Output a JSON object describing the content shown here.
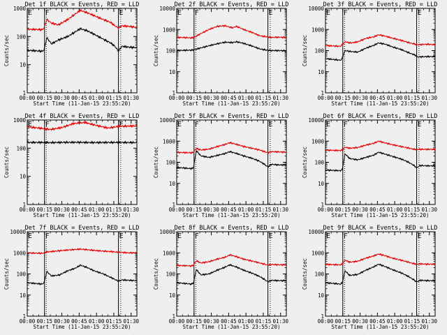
{
  "figure": {
    "background": "#efefef",
    "event_color": "#000000",
    "lld_color": "#e00000"
  },
  "chart_data": [
    {
      "type": "line",
      "title": "Det 1f BLACK = Events, RED = LLD",
      "detector": "1f",
      "xlabel": "Start Time (11-Jan-15 23:55:20)",
      "ylabel": "Counts/sec",
      "yscale": "log",
      "ylim": [
        1,
        1000
      ],
      "yticks": [
        "1",
        "10",
        "100",
        "1000"
      ],
      "xlim": [
        0,
        95
      ],
      "xticks": [
        "00:00",
        "00:15",
        "00:30",
        "00:45",
        "01:00",
        "01:15",
        "01:30"
      ],
      "markers": [
        {
          "label": "E",
          "x": -2
        },
        {
          "label": "F",
          "x": 15
        },
        {
          "label": "E",
          "x": 79
        }
      ],
      "vlines_solid": [
        15,
        79
      ],
      "vlines_dotted": [
        -1,
        16.5,
        81
      ],
      "x": [
        -5,
        3,
        13,
        14.5,
        17,
        21,
        27,
        35,
        42,
        46,
        52,
        58,
        66,
        72,
        76,
        79,
        82,
        88,
        95
      ],
      "series": [
        {
          "name": "Events",
          "color": "#000000",
          "values": [
            33,
            32,
            30,
            33,
            90,
            55,
            75,
            100,
            150,
            190,
            160,
            120,
            80,
            60,
            45,
            30,
            45,
            42,
            40
          ]
        },
        {
          "name": "LLD",
          "color": "#e00000",
          "values": [
            190,
            180,
            175,
            200,
            400,
            300,
            260,
            400,
            650,
            850,
            700,
            550,
            400,
            320,
            240,
            200,
            240,
            230,
            210
          ]
        }
      ]
    },
    {
      "type": "line",
      "title": "Det 2f BLACK = Events, RED = LLD",
      "detector": "2f",
      "xlabel": "Start Time (11-Jan-15 23:55:20)",
      "ylabel": "Counts/sec",
      "yscale": "log",
      "ylim": [
        1,
        10000
      ],
      "yticks": [
        "1",
        "10",
        "100",
        "1000",
        "10000"
      ],
      "xlim": [
        0,
        95
      ],
      "xticks": [
        "00:00",
        "00:15",
        "00:30",
        "00:45",
        "01:00",
        "01:15",
        "01:30"
      ],
      "markers": [
        {
          "label": "E",
          "x": -2
        },
        {
          "label": "F",
          "x": 15
        },
        {
          "label": "E",
          "x": 79
        }
      ],
      "vlines_solid": [
        15,
        79
      ],
      "vlines_dotted": [
        -1,
        16.5,
        81
      ],
      "x": [
        -5,
        3,
        13,
        15,
        20,
        28,
        35,
        42,
        48,
        52,
        58,
        66,
        72,
        78,
        82,
        88,
        95
      ],
      "series": [
        {
          "name": "Events",
          "color": "#000000",
          "values": [
            100,
            102,
            105,
            110,
            130,
            170,
            210,
            250,
            240,
            260,
            220,
            160,
            120,
            105,
            100,
            100,
            98
          ]
        },
        {
          "name": "LLD",
          "color": "#e00000",
          "values": [
            400,
            420,
            400,
            420,
            600,
            1000,
            1400,
            1500,
            1200,
            1400,
            1000,
            700,
            500,
            450,
            420,
            430,
            420
          ]
        }
      ]
    },
    {
      "type": "line",
      "title": "Det 3f BLACK = Events, RED = LLD",
      "detector": "3f",
      "xlabel": "Start Time (11-Jan-15 23:55:20)",
      "ylabel": "Counts/sec",
      "yscale": "log",
      "ylim": [
        1,
        10000
      ],
      "yticks": [
        "1",
        "10",
        "100",
        "1000",
        "10000"
      ],
      "xlim": [
        0,
        95
      ],
      "xticks": [
        "00:00",
        "00:15",
        "00:30",
        "00:45",
        "01:00",
        "01:15",
        "01:30"
      ],
      "markers": [
        {
          "label": "E",
          "x": -2
        },
        {
          "label": "F",
          "x": 15
        },
        {
          "label": "E",
          "x": 79
        }
      ],
      "vlines_solid": [
        15,
        79
      ],
      "vlines_dotted": [
        -1,
        16.5,
        81
      ],
      "x": [
        -5,
        3,
        13,
        14,
        17,
        22,
        28,
        35,
        42,
        46,
        52,
        58,
        66,
        72,
        78,
        80,
        88,
        95
      ],
      "series": [
        {
          "name": "Events",
          "color": "#000000",
          "values": [
            45,
            40,
            35,
            38,
            100,
            90,
            85,
            130,
            180,
            230,
            200,
            150,
            110,
            80,
            60,
            50,
            52,
            52
          ]
        },
        {
          "name": "LLD",
          "color": "#e00000",
          "values": [
            180,
            170,
            160,
            180,
            260,
            230,
            260,
            380,
            450,
            560,
            480,
            390,
            300,
            240,
            200,
            190,
            200,
            190
          ]
        }
      ]
    },
    {
      "type": "line",
      "title": "Det 4f BLACK = Events, RED = LLD",
      "detector": "4f",
      "xlabel": "Start Time (11-Jan-15 23:55:20)",
      "ylabel": "Counts/sec",
      "yscale": "log",
      "ylim": [
        1,
        1000
      ],
      "yticks": [
        "1",
        "10",
        "100",
        "1000"
      ],
      "xlim": [
        0,
        95
      ],
      "xticks": [
        "00:00",
        "00:15",
        "00:30",
        "00:45",
        "01:00",
        "01:15",
        "01:30"
      ],
      "markers": [
        {
          "label": "E",
          "x": -2
        },
        {
          "label": "F",
          "x": 15
        },
        {
          "label": "E",
          "x": 79
        }
      ],
      "vlines_solid": [
        15,
        79
      ],
      "vlines_dotted": [
        -1,
        16.5,
        81
      ],
      "x": [
        -5,
        10,
        20,
        30,
        40,
        50,
        60,
        70,
        80,
        95
      ],
      "series": [
        {
          "name": "Events",
          "color": "#000000",
          "values": [
            160,
            160,
            158,
            160,
            162,
            160,
            158,
            160,
            160,
            158
          ]
        },
        {
          "name": "LLD",
          "color": "#e00000",
          "values": [
            600,
            520,
            460,
            540,
            750,
            820,
            640,
            520,
            600,
            620
          ]
        }
      ]
    },
    {
      "type": "line",
      "title": "Det 5f BLACK = Events, RED = LLD",
      "detector": "5f",
      "xlabel": "Start Time (11-Jan-15 23:55:20)",
      "ylabel": "Counts/sec",
      "yscale": "log",
      "ylim": [
        1,
        10000
      ],
      "yticks": [
        "1",
        "10",
        "100",
        "1000",
        "10000"
      ],
      "xlim": [
        0,
        95
      ],
      "xticks": [
        "00:00",
        "00:15",
        "00:30",
        "00:45",
        "01:00",
        "01:15",
        "01:30"
      ],
      "markers": [
        {
          "label": "E",
          "x": -2
        },
        {
          "label": "F",
          "x": 15
        },
        {
          "label": "E",
          "x": 79
        }
      ],
      "vlines_solid": [
        15,
        79
      ],
      "vlines_dotted": [
        -1,
        16.5,
        81
      ],
      "x": [
        -5,
        3,
        13,
        14.5,
        17,
        21,
        28,
        35,
        42,
        46,
        52,
        58,
        66,
        72,
        76,
        79,
        82,
        88,
        95
      ],
      "series": [
        {
          "name": "Events",
          "color": "#000000",
          "values": [
            60,
            55,
            50,
            55,
            350,
            200,
            170,
            210,
            260,
            320,
            260,
            200,
            150,
            110,
            80,
            60,
            80,
            75,
            75
          ]
        },
        {
          "name": "LLD",
          "color": "#e00000",
          "values": [
            300,
            290,
            280,
            300,
            450,
            380,
            420,
            550,
            700,
            850,
            700,
            560,
            450,
            380,
            320,
            280,
            320,
            310,
            300
          ]
        }
      ]
    },
    {
      "type": "line",
      "title": "Det 6f BLACK = Events, RED = LLD",
      "detector": "6f",
      "xlabel": "Start Time (11-Jan-15 23:55:20)",
      "ylabel": "Counts/sec",
      "yscale": "log",
      "ylim": [
        1,
        10000
      ],
      "yticks": [
        "1",
        "10",
        "100",
        "1000",
        "10000"
      ],
      "xlim": [
        0,
        95
      ],
      "xticks": [
        "00:00",
        "00:15",
        "00:30",
        "00:45",
        "01:00",
        "01:15",
        "01:30"
      ],
      "markers": [
        {
          "label": "E",
          "x": -2
        },
        {
          "label": "F",
          "x": 15
        },
        {
          "label": "E",
          "x": 79
        }
      ],
      "vlines_solid": [
        15,
        79
      ],
      "vlines_dotted": [
        -1,
        16.5,
        81
      ],
      "x": [
        -5,
        3,
        13,
        14.5,
        17,
        21,
        28,
        35,
        42,
        46,
        52,
        58,
        66,
        72,
        76,
        79,
        82,
        88,
        95
      ],
      "series": [
        {
          "name": "Events",
          "color": "#000000",
          "values": [
            45,
            42,
            40,
            45,
            250,
            150,
            130,
            170,
            220,
            300,
            240,
            190,
            140,
            100,
            75,
            55,
            70,
            68,
            68
          ]
        },
        {
          "name": "LLD",
          "color": "#e00000",
          "values": [
            380,
            370,
            360,
            380,
            520,
            460,
            500,
            650,
            800,
            1000,
            820,
            680,
            550,
            470,
            420,
            400,
            410,
            410,
            410
          ]
        }
      ]
    },
    {
      "type": "line",
      "title": "Det 7f BLACK = Events, RED = LLD",
      "detector": "7f",
      "xlabel": "Start Time (11-Jan-15 23:55:20)",
      "ylabel": "Counts/sec",
      "yscale": "log",
      "ylim": [
        1,
        10000
      ],
      "yticks": [
        "1",
        "10",
        "100",
        "1000",
        "10000"
      ],
      "xlim": [
        0,
        95
      ],
      "xticks": [
        "00:00",
        "00:15",
        "00:30",
        "00:45",
        "01:00",
        "01:15",
        "01:30"
      ],
      "markers": [
        {
          "label": "E",
          "x": -2
        },
        {
          "label": "F",
          "x": 15
        },
        {
          "label": "E",
          "x": 79
        }
      ],
      "vlines_solid": [
        15,
        79
      ],
      "vlines_dotted": [
        -1,
        16.5,
        81
      ],
      "x": [
        -5,
        3,
        13,
        14.5,
        17,
        21,
        28,
        35,
        42,
        46,
        52,
        58,
        66,
        72,
        76,
        79,
        82,
        88,
        95
      ],
      "series": [
        {
          "name": "Events",
          "color": "#000000",
          "values": [
            40,
            37,
            33,
            38,
            130,
            80,
            90,
            140,
            190,
            260,
            200,
            140,
            100,
            70,
            55,
            45,
            52,
            50,
            48
          ]
        },
        {
          "name": "LLD",
          "color": "#e00000",
          "values": [
            1000,
            980,
            950,
            1000,
            1100,
            1150,
            1250,
            1350,
            1450,
            1500,
            1400,
            1300,
            1200,
            1150,
            1100,
            1050,
            1050,
            1000,
            1000
          ]
        }
      ]
    },
    {
      "type": "line",
      "title": "Det 8f BLACK = Events, RED = LLD",
      "detector": "8f",
      "xlabel": "Start Time (11-Jan-15 23:55:20)",
      "ylabel": "Counts/sec",
      "yscale": "log",
      "ylim": [
        1,
        10000
      ],
      "yticks": [
        "1",
        "10",
        "100",
        "1000",
        "10000"
      ],
      "xlim": [
        0,
        95
      ],
      "xticks": [
        "00:00",
        "00:15",
        "00:30",
        "00:45",
        "01:00",
        "01:15",
        "01:30"
      ],
      "markers": [
        {
          "label": "E",
          "x": -2
        },
        {
          "label": "F",
          "x": 15
        },
        {
          "label": "E",
          "x": 79
        }
      ],
      "vlines_solid": [
        15,
        79
      ],
      "vlines_dotted": [
        -1,
        16.5,
        81
      ],
      "x": [
        -5,
        3,
        13,
        14.5,
        17,
        21,
        28,
        35,
        42,
        46,
        52,
        58,
        66,
        72,
        76,
        79,
        82,
        88,
        95
      ],
      "series": [
        {
          "name": "Events",
          "color": "#000000",
          "values": [
            40,
            37,
            33,
            38,
            160,
            90,
            100,
            150,
            210,
            270,
            210,
            150,
            105,
            75,
            55,
            42,
            50,
            48,
            48
          ]
        },
        {
          "name": "LLD",
          "color": "#e00000",
          "values": [
            260,
            250,
            240,
            260,
            420,
            330,
            380,
            500,
            620,
            800,
            650,
            500,
            400,
            330,
            290,
            260,
            280,
            270,
            270
          ]
        }
      ]
    },
    {
      "type": "line",
      "title": "Det 9f BLACK = Events, RED = LLD",
      "detector": "9f",
      "xlabel": "Start Time (11-Jan-15 23:55:20)",
      "ylabel": "Counts/sec",
      "yscale": "log",
      "ylim": [
        1,
        10000
      ],
      "yticks": [
        "1",
        "10",
        "100",
        "1000",
        "10000"
      ],
      "xlim": [
        0,
        95
      ],
      "xticks": [
        "00:00",
        "00:15",
        "00:30",
        "00:45",
        "01:00",
        "01:15",
        "01:30"
      ],
      "markers": [
        {
          "label": "E",
          "x": -2
        },
        {
          "label": "F",
          "x": 15
        },
        {
          "label": "E",
          "x": 79
        }
      ],
      "vlines_solid": [
        15,
        79
      ],
      "vlines_dotted": [
        -1,
        16.5,
        81
      ],
      "x": [
        -5,
        3,
        13,
        14.5,
        17,
        21,
        28,
        35,
        42,
        46,
        52,
        58,
        66,
        72,
        76,
        79,
        82,
        88,
        95
      ],
      "series": [
        {
          "name": "Events",
          "color": "#000000",
          "values": [
            40,
            37,
            33,
            38,
            140,
            85,
            95,
            150,
            220,
            290,
            220,
            160,
            110,
            75,
            55,
            42,
            50,
            48,
            48
          ]
        },
        {
          "name": "LLD",
          "color": "#e00000",
          "values": [
            290,
            280,
            270,
            290,
            450,
            360,
            400,
            560,
            720,
            880,
            720,
            560,
            440,
            360,
            310,
            290,
            300,
            290,
            290
          ]
        }
      ]
    }
  ]
}
